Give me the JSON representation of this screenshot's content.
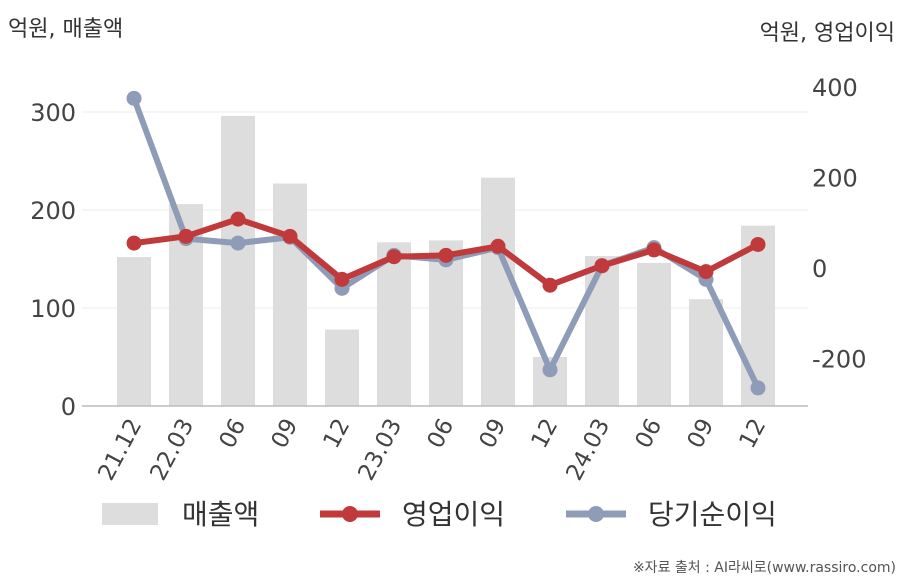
{
  "units": {
    "left": "억원, 매출액",
    "right": "억원, 영업이익"
  },
  "legend": {
    "revenue": "매출액",
    "operating_profit": "영업이익",
    "net_income": "당기순이익"
  },
  "source": "※자료 출처 : AI라씨로(www.rassiro.com)",
  "colors": {
    "revenue": "#dddddd",
    "operating_profit": "#c0393b",
    "net_income": "#8f9cb8"
  },
  "chart_data": {
    "type": "bar",
    "categories": [
      "21.12",
      "22.03",
      "06",
      "09",
      "12",
      "23.03",
      "06",
      "09",
      "12",
      "24.03",
      "06",
      "09",
      "12"
    ],
    "left_axis": {
      "ylim": [
        0,
        350
      ],
      "ticks": [
        0,
        100,
        200,
        300
      ]
    },
    "right_axis": {
      "ylim": [
        -300,
        400
      ],
      "ticks": [
        -200,
        0,
        200,
        400
      ]
    },
    "series": [
      {
        "name": "매출액",
        "type": "bar",
        "axis": "left",
        "values": [
          152,
          206,
          296,
          227,
          78,
          167,
          169,
          233,
          50,
          153,
          146,
          109,
          184
        ]
      },
      {
        "name": "영업이익",
        "type": "line",
        "axis": "right",
        "values": [
          55,
          70,
          108,
          70,
          -25,
          25,
          28,
          48,
          -38,
          5,
          40,
          -8,
          52
        ]
      },
      {
        "name": "당기순이익",
        "type": "line",
        "axis": "right",
        "values": [
          375,
          65,
          55,
          68,
          -45,
          28,
          18,
          45,
          -225,
          5,
          45,
          -25,
          -265
        ]
      }
    ],
    "grid": true,
    "legend_position": "bottom"
  }
}
